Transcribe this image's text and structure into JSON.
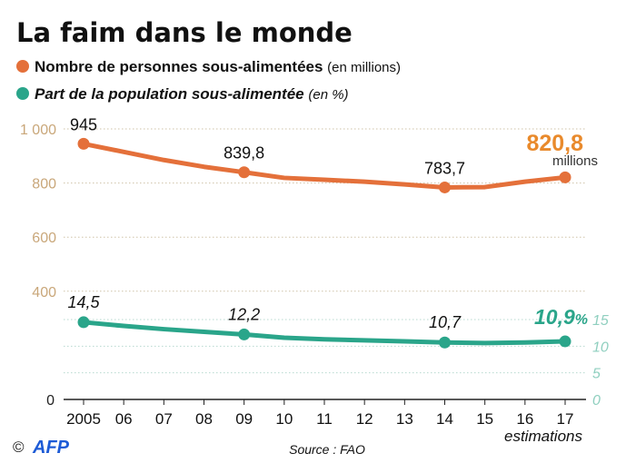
{
  "chart_data": {
    "type": "line",
    "title": "La faim dans le monde",
    "legend": [
      {
        "label": "Nombre de personnes sous-alimentées",
        "unit": "(en millions)",
        "color": "#e4703a"
      },
      {
        "label": "Part de la population sous-alimentée",
        "unit": "(en %)",
        "color": "#2aa58a"
      }
    ],
    "categories": [
      "2005",
      "06",
      "07",
      "08",
      "09",
      "10",
      "11",
      "12",
      "13",
      "14",
      "15",
      "16",
      "17"
    ],
    "x_note": "estimations",
    "left_axis": {
      "ticks": [
        "0",
        "400",
        "600",
        "800",
        "1 000"
      ],
      "tick_values": [
        0,
        400,
        600,
        800,
        1000
      ],
      "range": [
        0,
        1000
      ],
      "color": "#c9a77a"
    },
    "right_axis": {
      "ticks": [
        "0",
        "5",
        "10",
        "15"
      ],
      "tick_values": [
        0,
        5,
        10,
        15
      ],
      "range": [
        0,
        15
      ],
      "color": "#8fcfbf"
    },
    "grid": true,
    "series": [
      {
        "name": "Nombre de personnes sous-alimentées",
        "axis": "left",
        "color": "#e4703a",
        "values": [
          945,
          915,
          885,
          860,
          839.8,
          819,
          812,
          805,
          795,
          783.7,
          785,
          805,
          820.8
        ],
        "labels": [
          {
            "index": 0,
            "text": "945"
          },
          {
            "index": 4,
            "text": "839,8"
          },
          {
            "index": 9,
            "text": "783,7"
          }
        ],
        "final_label": "820,8",
        "final_unit": "millions"
      },
      {
        "name": "Part de la population sous-alimentée",
        "axis": "right",
        "color": "#2aa58a",
        "values": [
          14.5,
          13.8,
          13.2,
          12.7,
          12.2,
          11.6,
          11.3,
          11.1,
          10.9,
          10.7,
          10.6,
          10.7,
          10.9
        ],
        "labels": [
          {
            "index": 0,
            "text": "14,5"
          },
          {
            "index": 4,
            "text": "12,2"
          },
          {
            "index": 9,
            "text": "10,7"
          }
        ],
        "final_label": "10,9",
        "final_unit": "%"
      }
    ],
    "markers_at": [
      0,
      4,
      9,
      12
    ],
    "source": "Source : FAO",
    "credit": "© AFP"
  }
}
